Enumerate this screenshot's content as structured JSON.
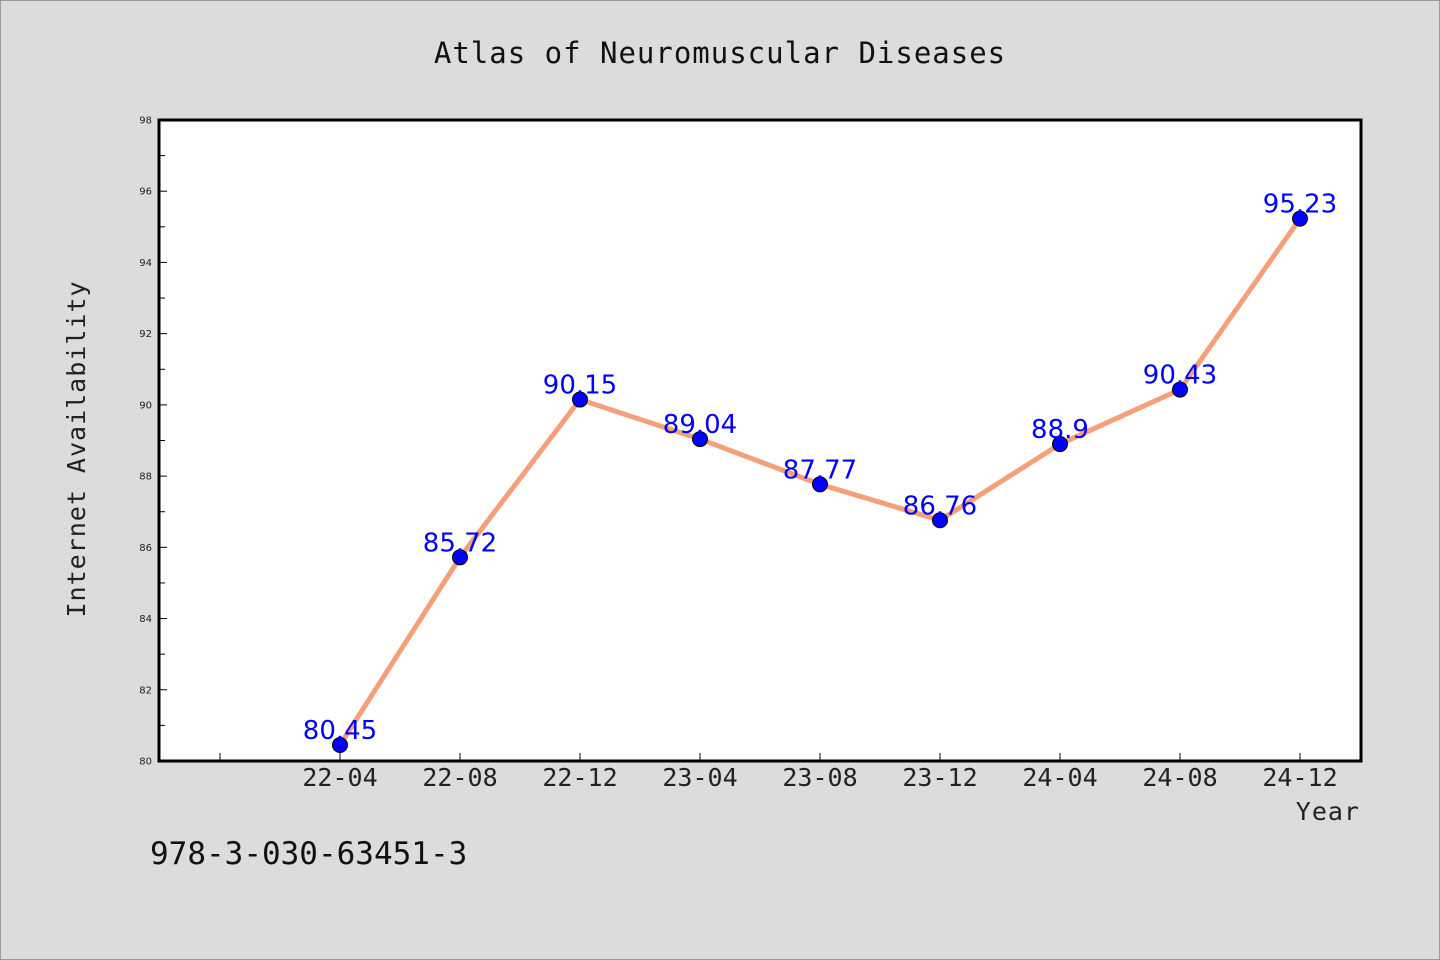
{
  "footnote": "978-3-030-63451-3",
  "colors": {
    "background": "#dcdcdc",
    "plot_background": "#ffffff",
    "line": "#f4a07a",
    "marker": "#0000ff",
    "data_label": "#0000ff"
  },
  "chart_data": {
    "type": "line",
    "title": "Atlas of Neuromuscular Diseases",
    "xlabel": "Year",
    "ylabel": "Internet Availability",
    "categories": [
      "22-04",
      "22-08",
      "22-12",
      "23-04",
      "23-08",
      "23-12",
      "24-04",
      "24-08",
      "24-12"
    ],
    "series": [
      {
        "values": [
          80.45,
          85.72,
          90.15,
          89.04,
          87.77,
          86.76,
          88.9,
          90.43,
          95.23
        ],
        "labels": [
          "80.45",
          "85.72",
          "90.15",
          "89.04",
          "87.77",
          "86.76",
          "88.9",
          "90.43",
          "95.23"
        ]
      }
    ],
    "ylim": [
      80,
      98
    ],
    "yticks": [
      80,
      82,
      84,
      86,
      88,
      90,
      92,
      94,
      96,
      98
    ],
    "grid": false,
    "legend": "none"
  }
}
